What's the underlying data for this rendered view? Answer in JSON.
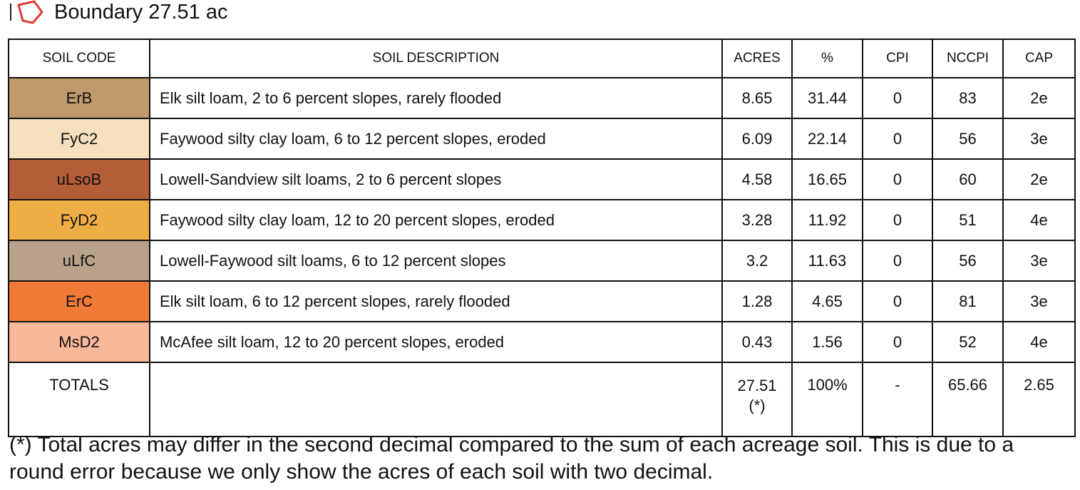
{
  "header": {
    "icon": "boundary-polygon-icon",
    "title": "Boundary 27.51 ac",
    "icon_color": "#e03a3a"
  },
  "table": {
    "columns": [
      "SOIL CODE",
      "SOIL DESCRIPTION",
      "ACRES",
      "%",
      "CPI",
      "NCCPI",
      "CAP"
    ],
    "rows": [
      {
        "code": "ErB",
        "color": "#c19a6b",
        "description": "Elk silt loam, 2 to 6 percent slopes, rarely flooded",
        "acres": "8.65",
        "percent": "31.44",
        "cpi": "0",
        "nccpi": "83",
        "cap": "2e"
      },
      {
        "code": "FyC2",
        "color": "#f7e0c0",
        "description": "Faywood silty clay loam, 6 to 12 percent slopes, eroded",
        "acres": "6.09",
        "percent": "22.14",
        "cpi": "0",
        "nccpi": "56",
        "cap": "3e"
      },
      {
        "code": "uLsoB",
        "color": "#b45d39",
        "description": "Lowell-Sandview silt loams, 2 to 6 percent slopes",
        "acres": "4.58",
        "percent": "16.65",
        "cpi": "0",
        "nccpi": "60",
        "cap": "2e"
      },
      {
        "code": "FyD2",
        "color": "#efad45",
        "description": "Faywood silty clay loam, 12 to 20 percent slopes, eroded",
        "acres": "3.28",
        "percent": "11.92",
        "cpi": "0",
        "nccpi": "51",
        "cap": "4e"
      },
      {
        "code": "uLfC",
        "color": "#b8a28a",
        "description": "Lowell-Faywood silt loams, 6 to 12 percent slopes",
        "acres": "3.2",
        "percent": "11.63",
        "cpi": "0",
        "nccpi": "56",
        "cap": "3e"
      },
      {
        "code": "ErC",
        "color": "#f27a38",
        "description": "Elk silt loam, 6 to 12 percent slopes, rarely flooded",
        "acres": "1.28",
        "percent": "4.65",
        "cpi": "0",
        "nccpi": "81",
        "cap": "3e"
      },
      {
        "code": "MsD2",
        "color": "#f8b99a",
        "description": "McAfee silt loam, 12 to 20 percent slopes, eroded",
        "acres": "0.43",
        "percent": "1.56",
        "cpi": "0",
        "nccpi": "52",
        "cap": "4e"
      }
    ],
    "totals": {
      "label": "TOTALS",
      "description": "",
      "acres": "27.51(*)",
      "percent": "100%",
      "cpi": "-",
      "nccpi": "65.66",
      "cap": "2.65"
    }
  },
  "footnote": "(*) Total acres may differ in the second decimal compared to the sum of each acreage soil. This is due to a round error because we only show the acres of each soil with two decimal."
}
